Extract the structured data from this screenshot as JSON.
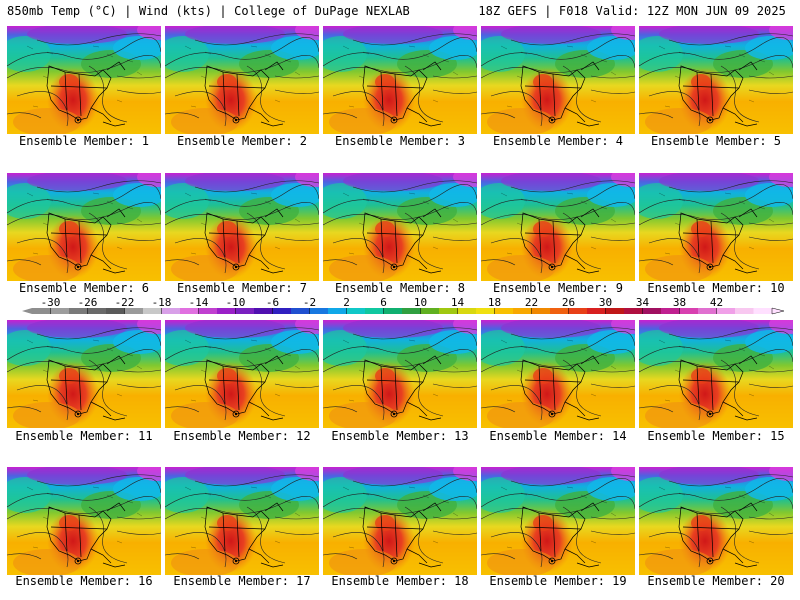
{
  "header": {
    "left": "850mb Temp (°C) | Wind (kts) | College of DuPage NEXLAB",
    "right": "18Z GEFS | F018 Valid: 12Z MON JUN 09 2025"
  },
  "members": [
    {
      "label": "Ensemble Member: 1"
    },
    {
      "label": "Ensemble Member: 2"
    },
    {
      "label": "Ensemble Member: 3"
    },
    {
      "label": "Ensemble Member: 4"
    },
    {
      "label": "Ensemble Member: 5"
    },
    {
      "label": "Ensemble Member: 6"
    },
    {
      "label": "Ensemble Member: 7"
    },
    {
      "label": "Ensemble Member: 8"
    },
    {
      "label": "Ensemble Member: 9"
    },
    {
      "label": "Ensemble Member: 10"
    },
    {
      "label": "Ensemble Member: 11"
    },
    {
      "label": "Ensemble Member: 12"
    },
    {
      "label": "Ensemble Member: 13"
    },
    {
      "label": "Ensemble Member: 14"
    },
    {
      "label": "Ensemble Member: 15"
    },
    {
      "label": "Ensemble Member: 16"
    },
    {
      "label": "Ensemble Member: 17"
    },
    {
      "label": "Ensemble Member: 18"
    },
    {
      "label": "Ensemble Member: 19"
    },
    {
      "label": "Ensemble Member: 20"
    }
  ],
  "colorbar": {
    "labels": [
      "-30",
      "-26",
      "-22",
      "-18",
      "-14",
      "-10",
      "-6",
      "-2",
      "2",
      "6",
      "10",
      "14",
      "18",
      "22",
      "26",
      "30",
      "34",
      "38",
      "42"
    ],
    "colors": [
      "#8e8e8e",
      "#9d9d9d",
      "#7a7a7a",
      "#6a6a6a",
      "#5a5a5a",
      "#9a9a9a",
      "#c8c8c8",
      "#d8a0e8",
      "#e070e0",
      "#c040d0",
      "#9a20c8",
      "#7a20c0",
      "#5010b0",
      "#3020c0",
      "#2050d0",
      "#1878e0",
      "#10a8e8",
      "#10c8c8",
      "#10c8a0",
      "#10b070",
      "#30a040",
      "#60b020",
      "#a0c810",
      "#d8d810",
      "#f0e010",
      "#f8c000",
      "#f8a800",
      "#f08800",
      "#f06010",
      "#e84018",
      "#d82020",
      "#c01818",
      "#b01040",
      "#a01060",
      "#c02090",
      "#d840b0",
      "#e070d0",
      "#f0a0e8",
      "#f8c8f0",
      "#ffe0ff"
    ]
  }
}
